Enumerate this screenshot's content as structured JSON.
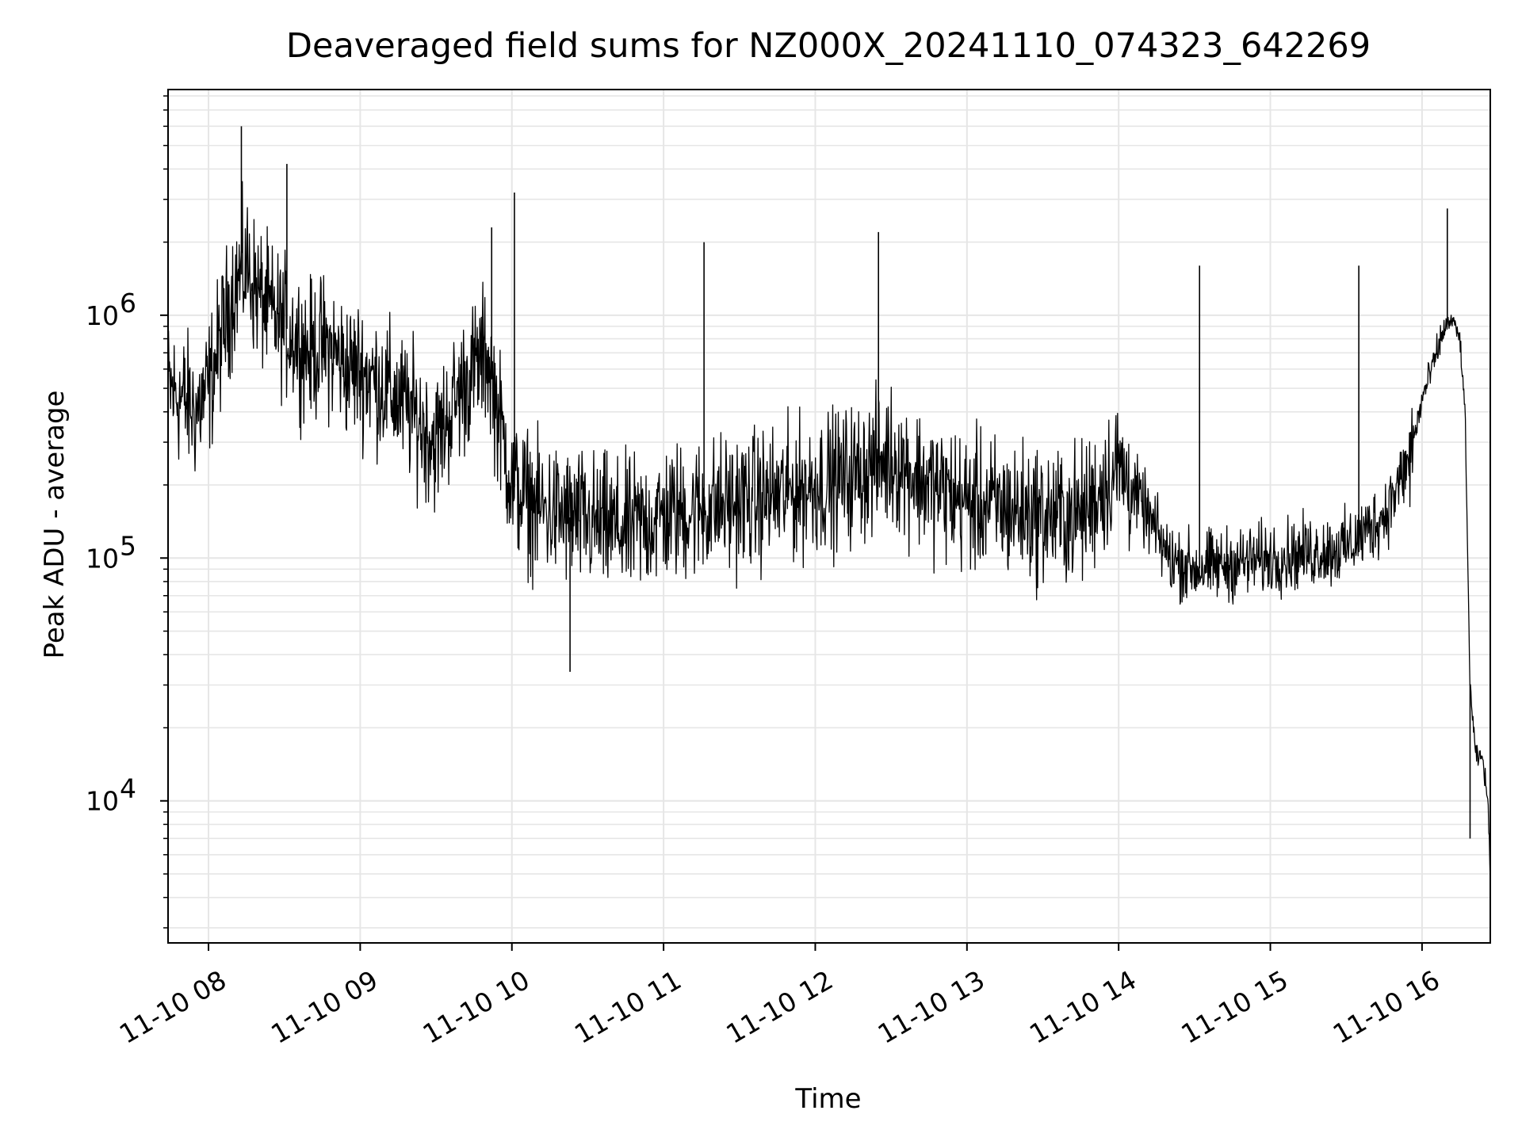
{
  "chart_data": {
    "type": "line",
    "title": "Deaveraged field sums for NZ000X_20241110_074323_642269",
    "xlabel": "Time",
    "ylabel": "Peak ADU - average",
    "yscale": "log",
    "grid": true,
    "line_color": "#000000",
    "grid_color": "#e6e6e6",
    "xlim": [
      "2024-11-10 07:44",
      "2024-11-10 16:27"
    ],
    "ylim": [
      2600,
      8500000
    ],
    "x_ticks": [
      {
        "time": "2024-11-10 08:00",
        "label": "11-10 08"
      },
      {
        "time": "2024-11-10 09:00",
        "label": "11-10 09"
      },
      {
        "time": "2024-11-10 10:00",
        "label": "11-10 10"
      },
      {
        "time": "2024-11-10 11:00",
        "label": "11-10 11"
      },
      {
        "time": "2024-11-10 12:00",
        "label": "11-10 12"
      },
      {
        "time": "2024-11-10 13:00",
        "label": "11-10 13"
      },
      {
        "time": "2024-11-10 14:00",
        "label": "11-10 14"
      },
      {
        "time": "2024-11-10 15:00",
        "label": "11-10 15"
      },
      {
        "time": "2024-11-10 16:00",
        "label": "11-10 16"
      }
    ],
    "y_ticks": [
      {
        "value": 10000,
        "base": "10",
        "exp": "4"
      },
      {
        "value": 100000,
        "base": "10",
        "exp": "5"
      },
      {
        "value": 1000000,
        "base": "10",
        "exp": "6"
      }
    ],
    "series": [
      {
        "x": [
          "2024-11-10 07:44",
          "2024-11-10 07:50",
          "2024-11-10 07:55",
          "2024-11-10 08:00",
          "2024-11-10 08:05",
          "2024-11-10 08:10",
          "2024-11-10 08:15",
          "2024-11-10 08:20",
          "2024-11-10 08:25",
          "2024-11-10 08:30",
          "2024-11-10 08:35",
          "2024-11-10 08:40",
          "2024-11-10 08:45",
          "2024-11-10 08:50",
          "2024-11-10 08:55",
          "2024-11-10 09:00",
          "2024-11-10 09:10",
          "2024-11-10 09:20",
          "2024-11-10 09:30",
          "2024-11-10 09:40",
          "2024-11-10 09:50",
          "2024-11-10 10:00",
          "2024-11-10 10:10",
          "2024-11-10 10:20",
          "2024-11-10 10:30",
          "2024-11-10 10:45",
          "2024-11-10 11:00",
          "2024-11-10 11:15",
          "2024-11-10 11:30",
          "2024-11-10 11:45",
          "2024-11-10 12:00",
          "2024-11-10 12:15",
          "2024-11-10 12:30",
          "2024-11-10 12:45",
          "2024-11-10 13:00",
          "2024-11-10 13:15",
          "2024-11-10 13:30",
          "2024-11-10 13:45",
          "2024-11-10 14:00",
          "2024-11-10 14:10",
          "2024-11-10 14:20",
          "2024-11-10 14:30",
          "2024-11-10 14:45",
          "2024-11-10 15:00",
          "2024-11-10 15:15",
          "2024-11-10 15:30",
          "2024-11-10 15:45",
          "2024-11-10 15:55",
          "2024-11-10 16:00",
          "2024-11-10 16:05",
          "2024-11-10 16:09",
          "2024-11-10 16:12",
          "2024-11-10 16:15",
          "2024-11-10 16:17",
          "2024-11-10 16:19",
          "2024-11-10 16:21",
          "2024-11-10 16:22",
          "2024-11-10 16:24",
          "2024-11-10 16:26",
          "2024-11-10 16:27"
        ],
        "y": [
          500000,
          450000,
          400000,
          500000,
          800000,
          1300000,
          1600000,
          1200000,
          1000000,
          900000,
          800000,
          700000,
          750000,
          700000,
          600000,
          600000,
          500000,
          400000,
          300000,
          500000,
          700000,
          200000,
          160000,
          150000,
          140000,
          130000,
          150000,
          160000,
          170000,
          180000,
          200000,
          220000,
          260000,
          200000,
          170000,
          160000,
          150000,
          150000,
          240000,
          160000,
          100000,
          90000,
          95000,
          100000,
          105000,
          110000,
          150000,
          250000,
          450000,
          650000,
          900000,
          950000,
          800000,
          400000,
          30000,
          16000,
          15000,
          15000,
          10000,
          5000
        ]
      }
    ],
    "spikes": [
      {
        "x": "2024-11-10 08:13",
        "y": 6000000
      },
      {
        "x": "2024-11-10 08:31",
        "y": 4200000
      },
      {
        "x": "2024-11-10 09:52",
        "y": 2300000
      },
      {
        "x": "2024-11-10 10:01",
        "y": 3200000
      },
      {
        "x": "2024-11-10 10:23",
        "y": 34000
      },
      {
        "x": "2024-11-10 11:16",
        "y": 2000000
      },
      {
        "x": "2024-11-10 12:25",
        "y": 2200000
      },
      {
        "x": "2024-11-10 14:32",
        "y": 1600000
      },
      {
        "x": "2024-11-10 15:35",
        "y": 1600000
      },
      {
        "x": "2024-11-10 16:10",
        "y": 2750000
      },
      {
        "x": "2024-11-10 16:19",
        "y": 7000
      }
    ]
  }
}
